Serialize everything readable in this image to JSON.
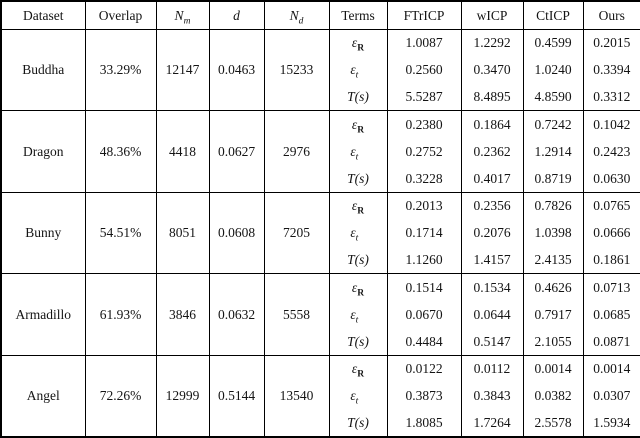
{
  "table": {
    "headers": [
      {
        "base": "Dataset",
        "sub": ""
      },
      {
        "base": "Overlap",
        "sub": ""
      },
      {
        "base": "N",
        "sub": "m"
      },
      {
        "base": "d",
        "sub": ""
      },
      {
        "base": "N",
        "sub": "d"
      },
      {
        "base": "Terms",
        "sub": ""
      },
      {
        "base": "FTrICP",
        "sub": ""
      },
      {
        "base": "wICP",
        "sub": ""
      },
      {
        "base": "CtICP",
        "sub": ""
      },
      {
        "base": "Ours",
        "sub": ""
      }
    ],
    "rows": [
      {
        "dataset": "Buddha",
        "overlap": "33.29%",
        "n_m": "12147",
        "d": "0.0463",
        "n_d": "15233",
        "terms": [
          {
            "base": "ε",
            "sub": "R",
            "bold_sub": true,
            "values": [
              "1.0087",
              "1.2292",
              "0.4599",
              "0.2015"
            ]
          },
          {
            "base": "ε",
            "sub": "t⃗",
            "bold_sub": false,
            "values": [
              "0.2560",
              "0.3470",
              "1.0240",
              "0.3394"
            ]
          },
          {
            "base": "T(s)",
            "sub": "",
            "bold_sub": false,
            "values": [
              "5.5287",
              "8.4895",
              "4.8590",
              "0.3312"
            ]
          }
        ]
      },
      {
        "dataset": "Dragon",
        "overlap": "48.36%",
        "n_m": "4418",
        "d": "0.0627",
        "n_d": "2976",
        "terms": [
          {
            "base": "ε",
            "sub": "R",
            "bold_sub": true,
            "values": [
              "0.2380",
              "0.1864",
              "0.7242",
              "0.1042"
            ]
          },
          {
            "base": "ε",
            "sub": "t⃗",
            "bold_sub": false,
            "values": [
              "0.2752",
              "0.2362",
              "1.2914",
              "0.2423"
            ]
          },
          {
            "base": "T(s)",
            "sub": "",
            "bold_sub": false,
            "values": [
              "0.3228",
              "0.4017",
              "0.8719",
              "0.0630"
            ]
          }
        ]
      },
      {
        "dataset": "Bunny",
        "overlap": "54.51%",
        "n_m": "8051",
        "d": "0.0608",
        "n_d": "7205",
        "terms": [
          {
            "base": "ε",
            "sub": "R",
            "bold_sub": true,
            "values": [
              "0.2013",
              "0.2356",
              "0.7826",
              "0.0765"
            ]
          },
          {
            "base": "ε",
            "sub": "t⃗",
            "bold_sub": false,
            "values": [
              "0.1714",
              "0.2076",
              "1.0398",
              "0.0666"
            ]
          },
          {
            "base": "T(s)",
            "sub": "",
            "bold_sub": false,
            "values": [
              "1.1260",
              "1.4157",
              "2.4135",
              "0.1861"
            ]
          }
        ]
      },
      {
        "dataset": "Armadillo",
        "overlap": "61.93%",
        "n_m": "3846",
        "d": "0.0632",
        "n_d": "5558",
        "terms": [
          {
            "base": "ε",
            "sub": "R",
            "bold_sub": true,
            "values": [
              "0.1514",
              "0.1534",
              "0.4626",
              "0.0713"
            ]
          },
          {
            "base": "ε",
            "sub": "t⃗",
            "bold_sub": false,
            "values": [
              "0.0670",
              "0.0644",
              "0.7917",
              "0.0685"
            ]
          },
          {
            "base": "T(s)",
            "sub": "",
            "bold_sub": false,
            "values": [
              "0.4484",
              "0.5147",
              "2.1055",
              "0.0871"
            ]
          }
        ]
      },
      {
        "dataset": "Angel",
        "overlap": "72.26%",
        "n_m": "12999",
        "d": "0.5144",
        "n_d": "13540",
        "terms": [
          {
            "base": "ε",
            "sub": "R",
            "bold_sub": true,
            "values": [
              "0.0122",
              "0.0112",
              "0.0014",
              "0.0014"
            ]
          },
          {
            "base": "ε",
            "sub": "t⃗",
            "bold_sub": false,
            "values": [
              "0.3873",
              "0.3843",
              "0.0382",
              "0.0307"
            ]
          },
          {
            "base": "T(s)",
            "sub": "",
            "bold_sub": false,
            "values": [
              "1.8085",
              "1.7264",
              "2.5578",
              "1.5934"
            ]
          }
        ]
      }
    ]
  }
}
